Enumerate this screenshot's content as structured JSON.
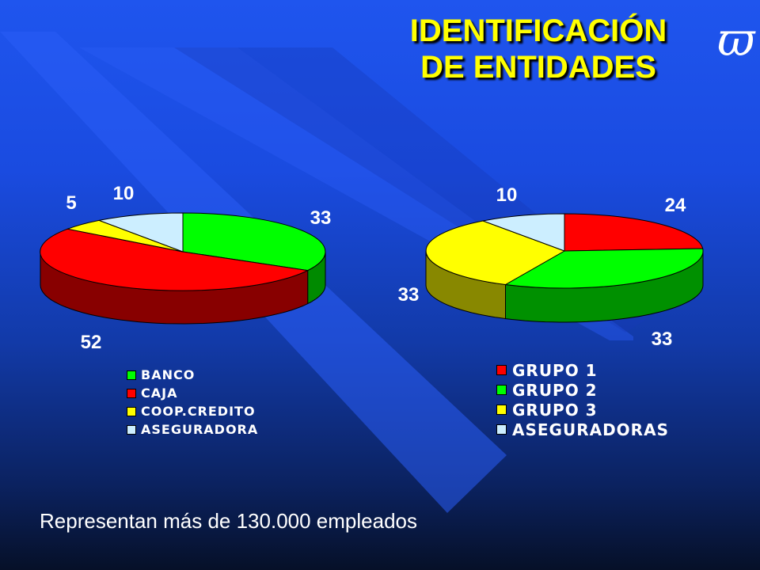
{
  "title_line1": "IDENTIFICACIÓN",
  "title_line2": "DE ENTIDADES",
  "logo_glyph": "ϖ",
  "footer_text": "Representan más de 130.000 empleados",
  "chart_data": [
    {
      "type": "pie",
      "categories": [
        "BANCO",
        "CAJA",
        "COOP.CREDITO",
        "ASEGURADORA"
      ],
      "values": [
        33,
        52,
        5,
        10
      ],
      "colors": [
        "#00ff00",
        "#ff0000",
        "#ffff00",
        "#cceeff"
      ],
      "side_colors": [
        "#008a00",
        "#880000",
        "#8a8a00",
        "#7799aa"
      ],
      "legend_placement": "bottom"
    },
    {
      "type": "pie",
      "categories": [
        "GRUPO 1",
        "GRUPO 2",
        "GRUPO 3",
        "ASEGURADORAS"
      ],
      "values": [
        24,
        33,
        33,
        10
      ],
      "colors": [
        "#ff0000",
        "#00ff00",
        "#ffff00",
        "#cceeff"
      ],
      "side_colors": [
        "#880000",
        "#009000",
        "#888800",
        "#7799aa"
      ],
      "legend_placement": "bottom"
    }
  ]
}
